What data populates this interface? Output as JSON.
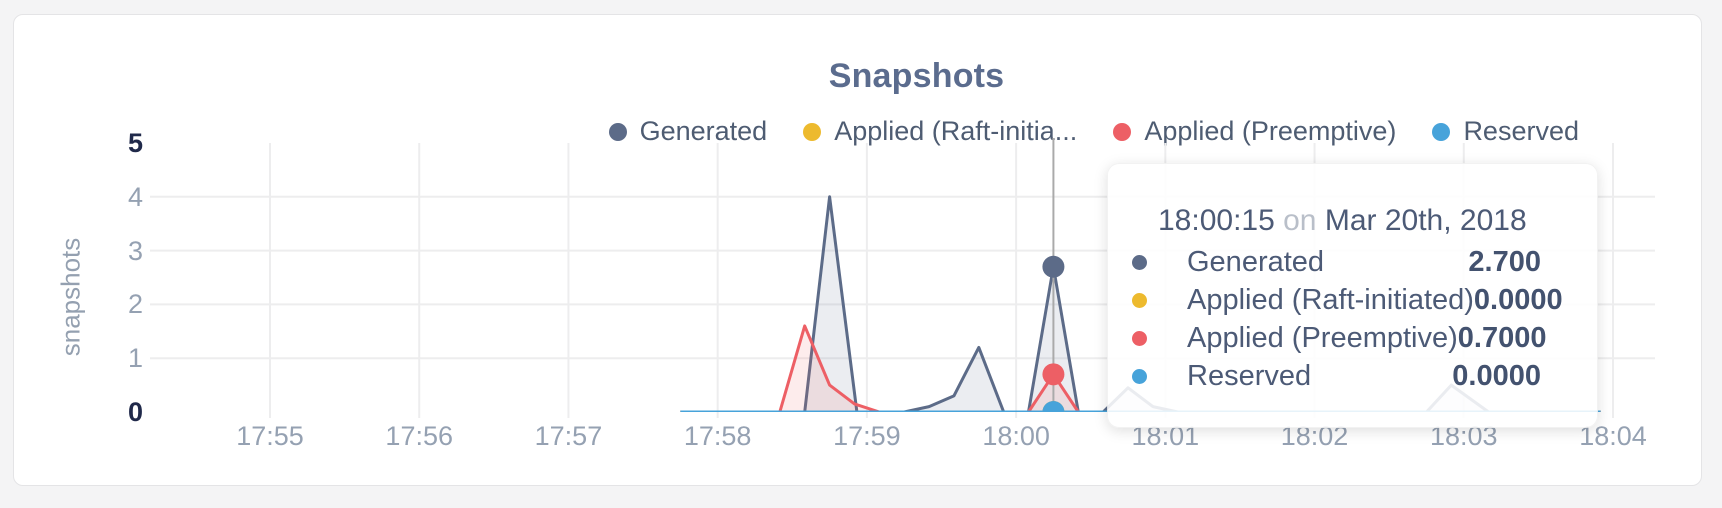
{
  "card": {
    "background": "#ffffff"
  },
  "chart_data": {
    "type": "area",
    "title": "Snapshots",
    "ylabel": "snapshots",
    "xlabel": "",
    "grid": true,
    "legend_position": "top-right",
    "xticks": [
      "17:55",
      "17:56",
      "17:57",
      "17:58",
      "17:59",
      "18:00",
      "18:01",
      "18:02",
      "18:03",
      "18:04"
    ],
    "yticks": [
      5,
      4,
      3,
      2,
      1,
      0
    ],
    "ylim": [
      0,
      5
    ],
    "xlim": [
      "17:55:00",
      "18:04:00"
    ],
    "series": [
      {
        "name": "Generated",
        "legend_label": "Generated",
        "color": "#5c6b88",
        "points": [
          [
            "17:57:45",
            0
          ],
          [
            "17:58:35",
            0
          ],
          [
            "17:58:45",
            4
          ],
          [
            "17:58:56",
            0
          ],
          [
            "17:59:15",
            0
          ],
          [
            "17:59:25",
            0.1
          ],
          [
            "17:59:35",
            0.3
          ],
          [
            "17:59:45",
            1.2
          ],
          [
            "17:59:55",
            0
          ],
          [
            "18:00:05",
            0
          ],
          [
            "18:00:15",
            2.7
          ],
          [
            "18:00:25",
            0
          ],
          [
            "18:00:35",
            0
          ],
          [
            "18:00:45",
            0.45
          ],
          [
            "18:00:55",
            0.1
          ],
          [
            "18:01:05",
            0
          ],
          [
            "18:02:45",
            0
          ],
          [
            "18:02:55",
            0.5
          ],
          [
            "18:03:10",
            0
          ],
          [
            "18:03:55",
            0
          ]
        ]
      },
      {
        "name": "Applied (Raft-initiated)",
        "legend_label": "Applied (Raft-initia...",
        "color": "#edba2e",
        "points": [
          [
            "17:57:45",
            0
          ],
          [
            "18:03:55",
            0
          ]
        ]
      },
      {
        "name": "Applied (Preemptive)",
        "legend_label": "Applied (Preemptive)",
        "color": "#ed5f65",
        "points": [
          [
            "17:57:45",
            0
          ],
          [
            "17:58:25",
            0
          ],
          [
            "17:58:35",
            1.6
          ],
          [
            "17:58:45",
            0.5
          ],
          [
            "17:58:55",
            0.15
          ],
          [
            "17:59:05",
            0
          ],
          [
            "18:00:05",
            0
          ],
          [
            "18:00:15",
            0.7
          ],
          [
            "18:00:25",
            0
          ],
          [
            "18:03:55",
            0
          ]
        ]
      },
      {
        "name": "Reserved",
        "legend_label": "Reserved",
        "color": "#47a3da",
        "points": [
          [
            "17:57:45",
            0
          ],
          [
            "18:03:55",
            0
          ]
        ]
      }
    ],
    "hover": {
      "time": "18:00:15",
      "values": [
        2.7,
        0,
        0.7,
        0
      ]
    }
  },
  "legend": {
    "items": [
      {
        "label": "Generated",
        "color": "#5c6b88"
      },
      {
        "label": "Applied (Raft-initia...",
        "color": "#edba2e"
      },
      {
        "label": "Applied (Preemptive)",
        "color": "#ed5f65"
      },
      {
        "label": "Reserved",
        "color": "#47a3da"
      }
    ]
  },
  "tooltip": {
    "time": "18:00:15",
    "conjunction": "on",
    "date": "Mar 20th, 2018",
    "rows": [
      {
        "label": "Generated",
        "value": "2.700",
        "color": "#5c6b88"
      },
      {
        "label": "Applied (Raft-initiated)",
        "value": "0.0000",
        "color": "#edba2e"
      },
      {
        "label": "Applied (Preemptive)",
        "value": "0.7000",
        "color": "#ed5f65"
      },
      {
        "label": "Reserved",
        "value": "0.0000",
        "color": "#47a3da"
      }
    ]
  }
}
